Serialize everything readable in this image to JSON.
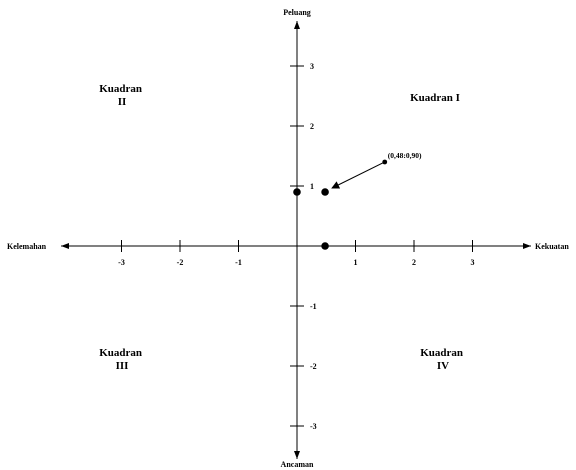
{
  "chart_data": {
    "type": "scatter",
    "axis_labels": {
      "top": "Peluang",
      "bottom": "Ancaman",
      "left": "Kelemahan",
      "right": "Kekuatan"
    },
    "x_ticks": [
      -3,
      -2,
      -1,
      1,
      2,
      3
    ],
    "y_ticks": [
      3,
      2,
      1,
      -1,
      -2,
      -3
    ],
    "xlim": [
      -3.4,
      3.9
    ],
    "ylim": [
      -3.6,
      3.8
    ],
    "grid": false,
    "quadrants": {
      "q1": [
        "Kuadran I"
      ],
      "q2": [
        "Kuadran",
        "II"
      ],
      "q3": [
        "Kuadran",
        "III"
      ],
      "q4": [
        "Kuadran",
        "IV"
      ]
    },
    "points": [
      {
        "x": 0.48,
        "y": 0.9
      },
      {
        "x": 0,
        "y": 0.9
      },
      {
        "x": 0.48,
        "y": 0
      }
    ],
    "annotation": {
      "text": "(0,48:0,90)",
      "from": [
        1.5,
        1.4
      ],
      "to": [
        0.6,
        0.9
      ]
    }
  }
}
